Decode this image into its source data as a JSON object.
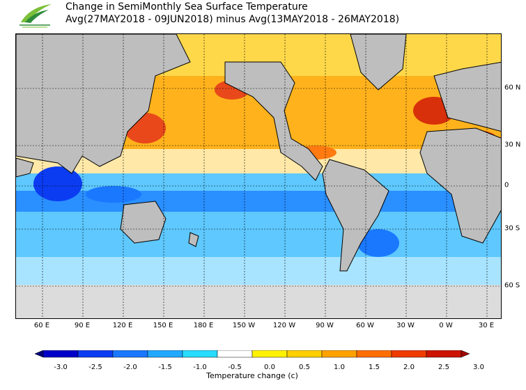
{
  "header": {
    "title": "Change in SemiMonthly Sea Surface Temperature",
    "subtitle": "Avg(27MAY2018 - 09JUN2018) minus Avg(13MAY2018 - 26MAY2018)",
    "logo_icon": "bird-logo-icon"
  },
  "map": {
    "longitude_labels": [
      "60 E",
      "90 E",
      "120 E",
      "150 E",
      "180 E",
      "150 W",
      "120 W",
      "90 W",
      "60 W",
      "30 W",
      "0 W",
      "30 E"
    ],
    "latitude_labels": [
      "60 N",
      "30 N",
      "0",
      "30 S",
      "60 S"
    ],
    "land_color": "#bebebe",
    "ice_color": "#dcdcdc"
  },
  "colorbar": {
    "tick_labels": [
      "-3.0",
      "-2.5",
      "-2.0",
      "-1.5",
      "-1.0",
      "-0.5",
      "0.0",
      "0.5",
      "1.0",
      "1.5",
      "2.0",
      "2.5",
      "3.0"
    ],
    "colors": [
      "#02027a",
      "#0000c8",
      "#0b3cf2",
      "#1a78ff",
      "#21a8ff",
      "#27dcff",
      "#ffffff",
      "#fff200",
      "#ffd000",
      "#ffa200",
      "#ff6e00",
      "#f03c00",
      "#cc1400",
      "#a00a00"
    ],
    "title": "Temperature change  (c)"
  }
}
